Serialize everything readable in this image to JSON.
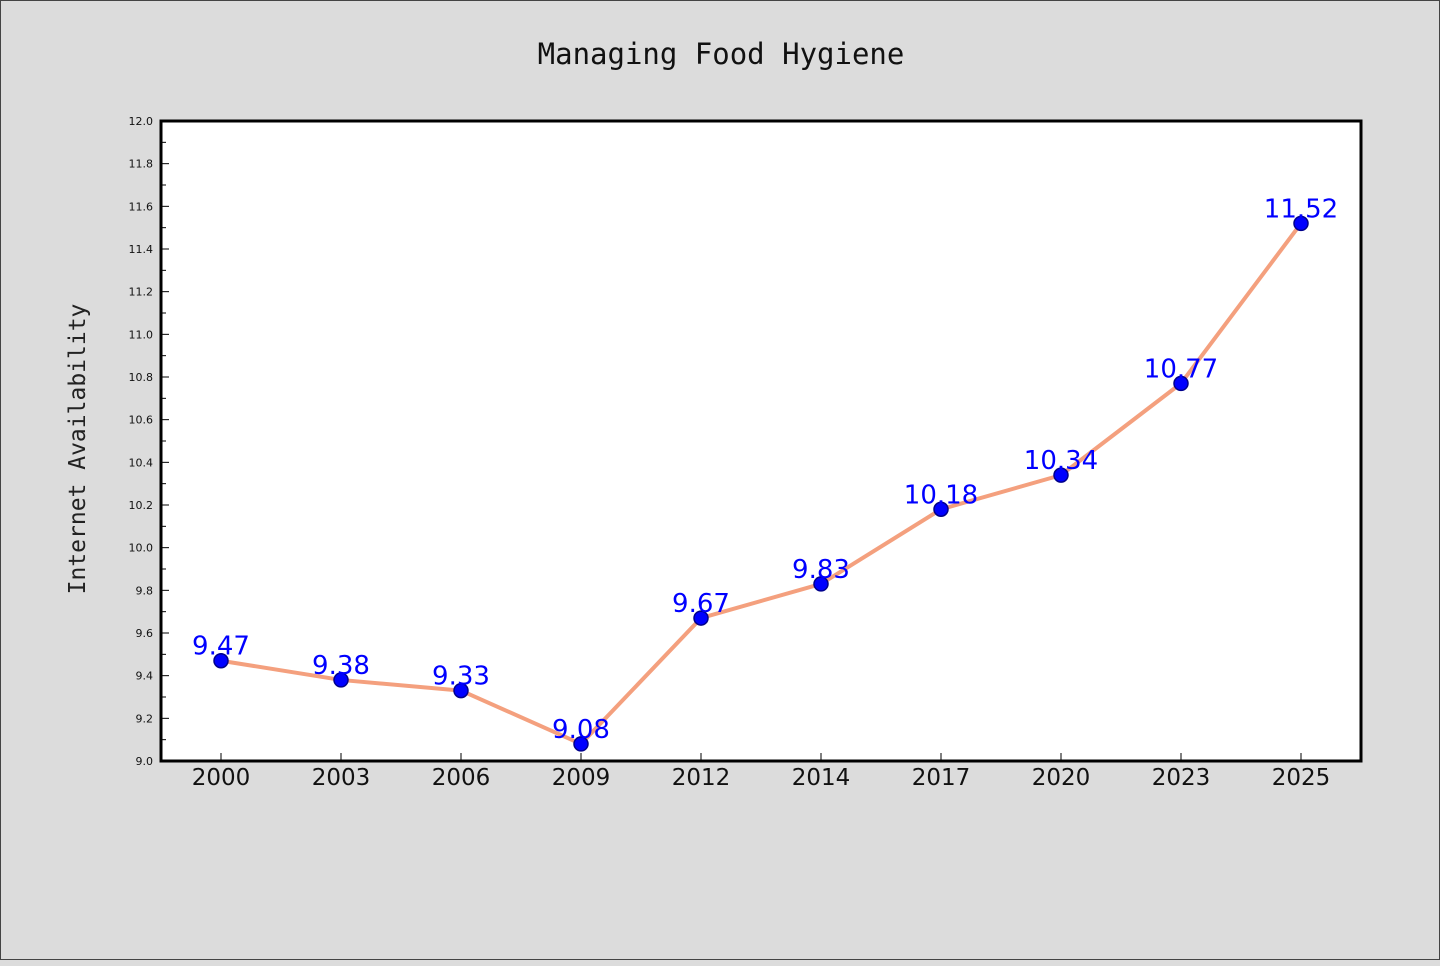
{
  "chart_data": {
    "type": "line",
    "title": "Managing Food Hygiene",
    "xlabel": "",
    "ylabel": "Internet Availability",
    "categories": [
      "2000",
      "2003",
      "2006",
      "2009",
      "2012",
      "2014",
      "2017",
      "2020",
      "2023",
      "2025"
    ],
    "series": [
      {
        "values": [
          9.47,
          9.38,
          9.33,
          9.08,
          9.67,
          9.83,
          10.18,
          10.34,
          10.77,
          11.52
        ]
      }
    ],
    "data_labels": [
      "9.47",
      "9.38",
      "9.33",
      "9.08",
      "9.67",
      "9.83",
      "10.18",
      "10.34",
      "10.77",
      "11.52"
    ],
    "ylim": [
      9.0,
      12.0
    ],
    "yticks": [
      "9.0",
      "9.2",
      "9.4",
      "9.6",
      "9.8",
      "10.0",
      "10.2",
      "10.4",
      "10.6",
      "10.8",
      "11.0",
      "11.2",
      "11.4",
      "11.6",
      "11.8",
      "12.0"
    ],
    "grid": false,
    "legend": "none",
    "colors": {
      "line": "#f4a07e",
      "marker": "#0000ff",
      "marker_edge": "#00008b",
      "data_label": "#0000ff",
      "background": "#dcdcdc",
      "plot_background": "#ffffff"
    }
  }
}
